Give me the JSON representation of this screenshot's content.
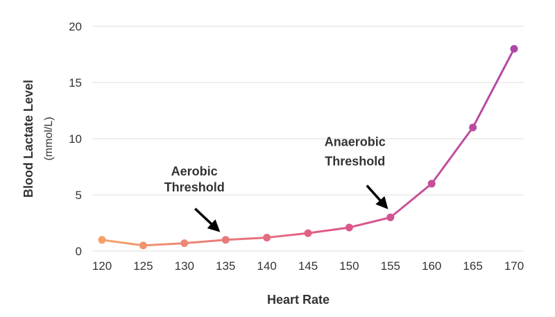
{
  "chart_data": {
    "type": "line",
    "x": [
      120,
      125,
      130,
      135,
      140,
      145,
      150,
      155,
      160,
      165,
      170
    ],
    "series": [
      {
        "values": [
          1.0,
          0.5,
          0.7,
          1.0,
          1.2,
          1.6,
          2.1,
          3.0,
          6.0,
          11.0,
          18.0
        ]
      }
    ],
    "xticks": [
      "120",
      "125",
      "130",
      "135",
      "140",
      "145",
      "150",
      "155",
      "160",
      "165",
      "170"
    ],
    "yticks": [
      "0",
      "5",
      "10",
      "15",
      "20"
    ],
    "xlabel": "Heart Rate",
    "ylabel": "Blood Lactate Level",
    "ylabel_unit": "(mmol/L)",
    "xlim": [
      120,
      170
    ],
    "ylim": [
      0,
      20
    ],
    "grid": "horizontal",
    "annotations": [
      {
        "line1": "Aerobic",
        "line2": "Threshold",
        "x": 135,
        "y": 1.0
      },
      {
        "line1": "Anaerobic",
        "line2": "Threshold",
        "x": 155,
        "y": 3.0
      }
    ],
    "colors": {
      "start": "#f4a06a",
      "mid": "#e05a86",
      "end": "#b047a8",
      "grid": "#dddddd",
      "arrow": "#000000"
    }
  }
}
